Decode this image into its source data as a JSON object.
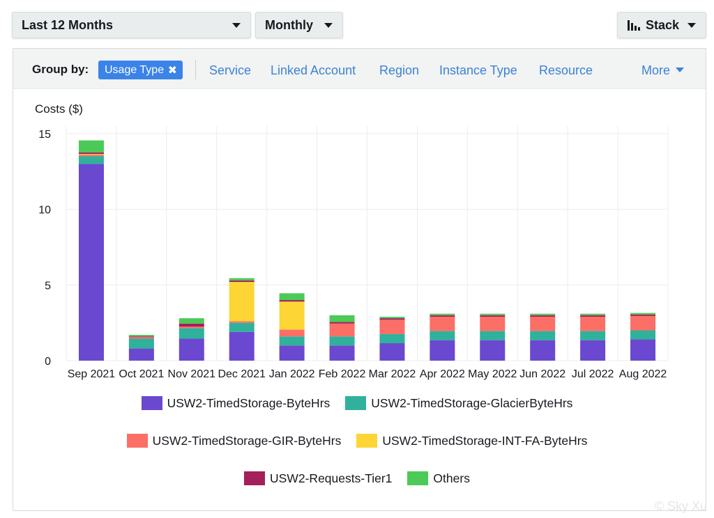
{
  "controls": {
    "range_label": "Last 12 Months",
    "granularity_label": "Monthly",
    "view_label": "Stack"
  },
  "group_by": {
    "label": "Group by:",
    "active_chip": "Usage Type",
    "chip_close": "✖",
    "options": [
      "Service",
      "Linked Account",
      "Region",
      "Instance Type",
      "Resource"
    ],
    "more_label": "More"
  },
  "chart_data": {
    "type": "bar",
    "stacked": true,
    "title": "",
    "ylabel": "Costs ($)",
    "ylim": [
      0,
      15.5
    ],
    "yticks": [
      0,
      5,
      10,
      15
    ],
    "grid": true,
    "legend_position": "bottom",
    "categories": [
      "Sep 2021",
      "Oct 2021",
      "Nov 2021",
      "Dec 2021",
      "Jan 2022",
      "Feb 2022",
      "Mar 2022",
      "Apr 2022",
      "May 2022",
      "Jun 2022",
      "Jul 2022",
      "Aug 2022"
    ],
    "series": [
      {
        "name": "USW2-TimedStorage-ByteHrs",
        "color": "#6a48cf",
        "values": [
          13.0,
          0.8,
          1.45,
          1.9,
          1.0,
          1.0,
          1.15,
          1.35,
          1.35,
          1.35,
          1.35,
          1.4
        ]
      },
      {
        "name": "USW2-TimedStorage-GlacierByteHrs",
        "color": "#2fb19c",
        "values": [
          0.5,
          0.65,
          0.7,
          0.6,
          0.6,
          0.6,
          0.6,
          0.6,
          0.6,
          0.6,
          0.6,
          0.6
        ]
      },
      {
        "name": "USW2-TimedStorage-GIR-ByteHrs",
        "color": "#fb6f66",
        "values": [
          0.1,
          0.1,
          0.1,
          0.1,
          0.45,
          0.85,
          0.95,
          0.95,
          0.95,
          0.95,
          0.95,
          0.95
        ]
      },
      {
        "name": "USW2-TimedStorage-INT-FA-ByteHrs",
        "color": "#fdd535",
        "values": [
          0.05,
          0.0,
          0.0,
          2.6,
          1.85,
          0.0,
          0.0,
          0.0,
          0.0,
          0.0,
          0.0,
          0.0
        ]
      },
      {
        "name": "USW2-Requests-Tier1",
        "color": "#a3205a",
        "values": [
          0.1,
          0.05,
          0.2,
          0.1,
          0.1,
          0.1,
          0.1,
          0.1,
          0.1,
          0.1,
          0.1,
          0.1
        ]
      },
      {
        "name": "Others",
        "color": "#4bca57",
        "values": [
          0.8,
          0.1,
          0.35,
          0.15,
          0.45,
          0.45,
          0.1,
          0.1,
          0.1,
          0.1,
          0.1,
          0.1
        ]
      }
    ]
  },
  "watermark": "© Sky Xu"
}
